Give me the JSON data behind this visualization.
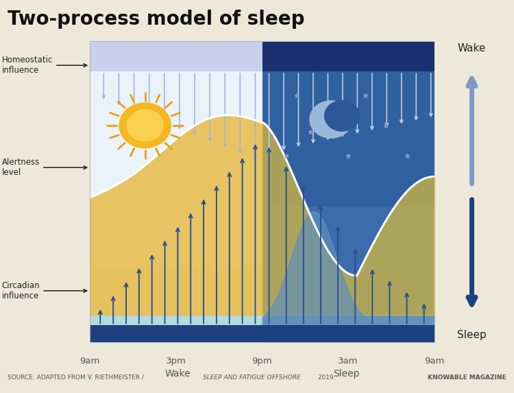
{
  "title": "Two-process model of sleep",
  "bg_color": "#ede8da",
  "source_text": "SOURCE: ADAPTED FROM V. RIETHMEISTER / ",
  "source_italic": "SLEEP AND FATIGUE OFFSHORE",
  "source_year": " 2019",
  "source_right": "KNOWABLE MAGAZINE",
  "x_labels": [
    "9am",
    "3pm",
    "9pm",
    "3am",
    "9am"
  ],
  "wake_label": "Wake",
  "sleep_label": "Sleep",
  "homeostatic_label": "Homeostatic\ninfluence",
  "alertness_label": "Alertness\nlevel",
  "circadian_label": "Circadian\ninfluence",
  "wake_arrow_label": "Wake",
  "sleep_arrow_label": "Sleep",
  "day_bg_top": "#f0f4fa",
  "day_bg_bot": "#d8eedd",
  "night_bg": "#2d5fa8",
  "night_dark": "#1e3d7a",
  "top_band_day": "#d0d8f0",
  "top_band_night": "#1e3d8a",
  "alertness_color": "#e8bc50",
  "alertness_night_color": "#d4c870",
  "white_curve": "#ffffff",
  "arrow_up_day": "#2a5090",
  "arrow_up_night": "#3060a0",
  "arrow_down_day": "#b8c8e8",
  "arrow_down_night": "#c0ccee",
  "bottom_bar": "#1a4080",
  "sun_color": "#f5b830",
  "sun_ray": "#e89820",
  "moon_color": "#9ab0d0",
  "moon_cut": "#2d5fa8",
  "star_color": "#8090b8",
  "sleep_bump_color": "#7090c0",
  "circ_base_day": "#b8dde8",
  "circ_base_night": "#90b8d0"
}
